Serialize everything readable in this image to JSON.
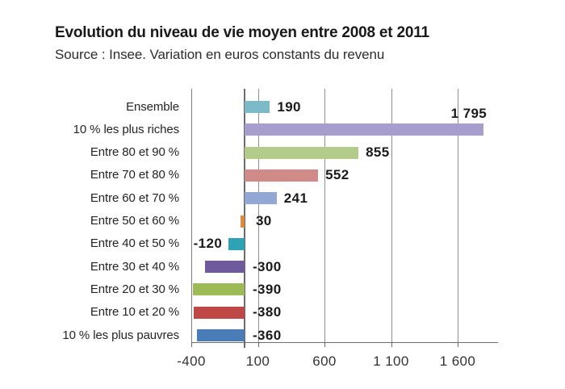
{
  "chart_data": {
    "type": "bar",
    "orientation": "horizontal",
    "title": "Evolution du niveau de vie moyen entre 2008 et 2011",
    "subtitle": "Source : Insee. Variation en euros constants du revenu",
    "categories": [
      "Ensemble",
      "10 % les plus riches",
      "Entre 80 et 90 %",
      "Entre 70 et 80 %",
      "Entre 60 et 70 %",
      "Entre 50 et 60 %",
      "Entre 40 et 50 %",
      "Entre 30 et 40 %",
      "Entre 20 et 30 %",
      "Entre 10 et 20 %",
      "10 % les plus pauvres"
    ],
    "values": [
      190,
      1795,
      855,
      552,
      241,
      30,
      -120,
      -300,
      -390,
      -380,
      -360
    ],
    "value_labels": [
      "190",
      "1 795",
      "855",
      "552",
      "241",
      "30",
      "-120",
      "-300",
      "-390",
      "-380",
      "-360"
    ],
    "bar_colors": [
      "#7cbac9",
      "#a79ecd",
      "#b3cb8b",
      "#d08a87",
      "#92a7d3",
      "#dd8c3d",
      "#2ea3b5",
      "#6f5a9e",
      "#9cba56",
      "#bf4846",
      "#4a7cb8"
    ],
    "x_axis": {
      "range": [
        -400,
        1900
      ],
      "ticks": [
        {
          "value": -400,
          "label": "-400"
        },
        {
          "value": 100,
          "label": "100"
        },
        {
          "value": 600,
          "label": "600"
        },
        {
          "value": 1100,
          "label": "1 100"
        },
        {
          "value": 1600,
          "label": "1 600"
        }
      ]
    },
    "ylabel": "",
    "xlabel": "",
    "grid": "vertical",
    "zero_line": true,
    "legend": "none",
    "colors": {
      "text": "#1f1f1f",
      "grid": "#8f8f8f",
      "axis": "#6a6a6a",
      "background": "#ffffff"
    }
  }
}
